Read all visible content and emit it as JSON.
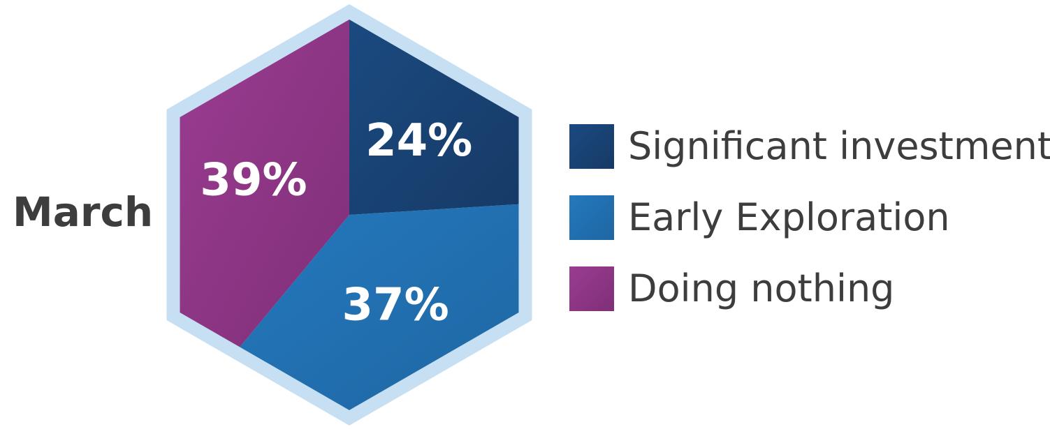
{
  "chart_data": {
    "type": "pie",
    "shape": "hexagon",
    "row_label": "March",
    "series": [
      {
        "name": "March",
        "slices": [
          {
            "label": "Significant investment",
            "value": 24,
            "display": "24%",
            "color": "#1b4a80",
            "color_dark": "#163a66"
          },
          {
            "label": "Early Exploration",
            "value": 37,
            "display": "37%",
            "color": "#2479bd",
            "color_dark": "#1f66a3"
          },
          {
            "label": "Doing nothing",
            "value": 39,
            "display": "39%",
            "color": "#9b3c91",
            "color_dark": "#7f2f78"
          }
        ]
      }
    ],
    "legend_position": "right",
    "border_color": "#c6dff3"
  },
  "legend": {
    "items": [
      {
        "label": "Significant investment",
        "color": "#1b4a80",
        "color_dark": "#163a66"
      },
      {
        "label": "Early Exploration",
        "color": "#2479bd",
        "color_dark": "#1f66a3"
      },
      {
        "label": "Doing nothing",
        "color": "#9b3c91",
        "color_dark": "#7f2f78"
      }
    ]
  }
}
